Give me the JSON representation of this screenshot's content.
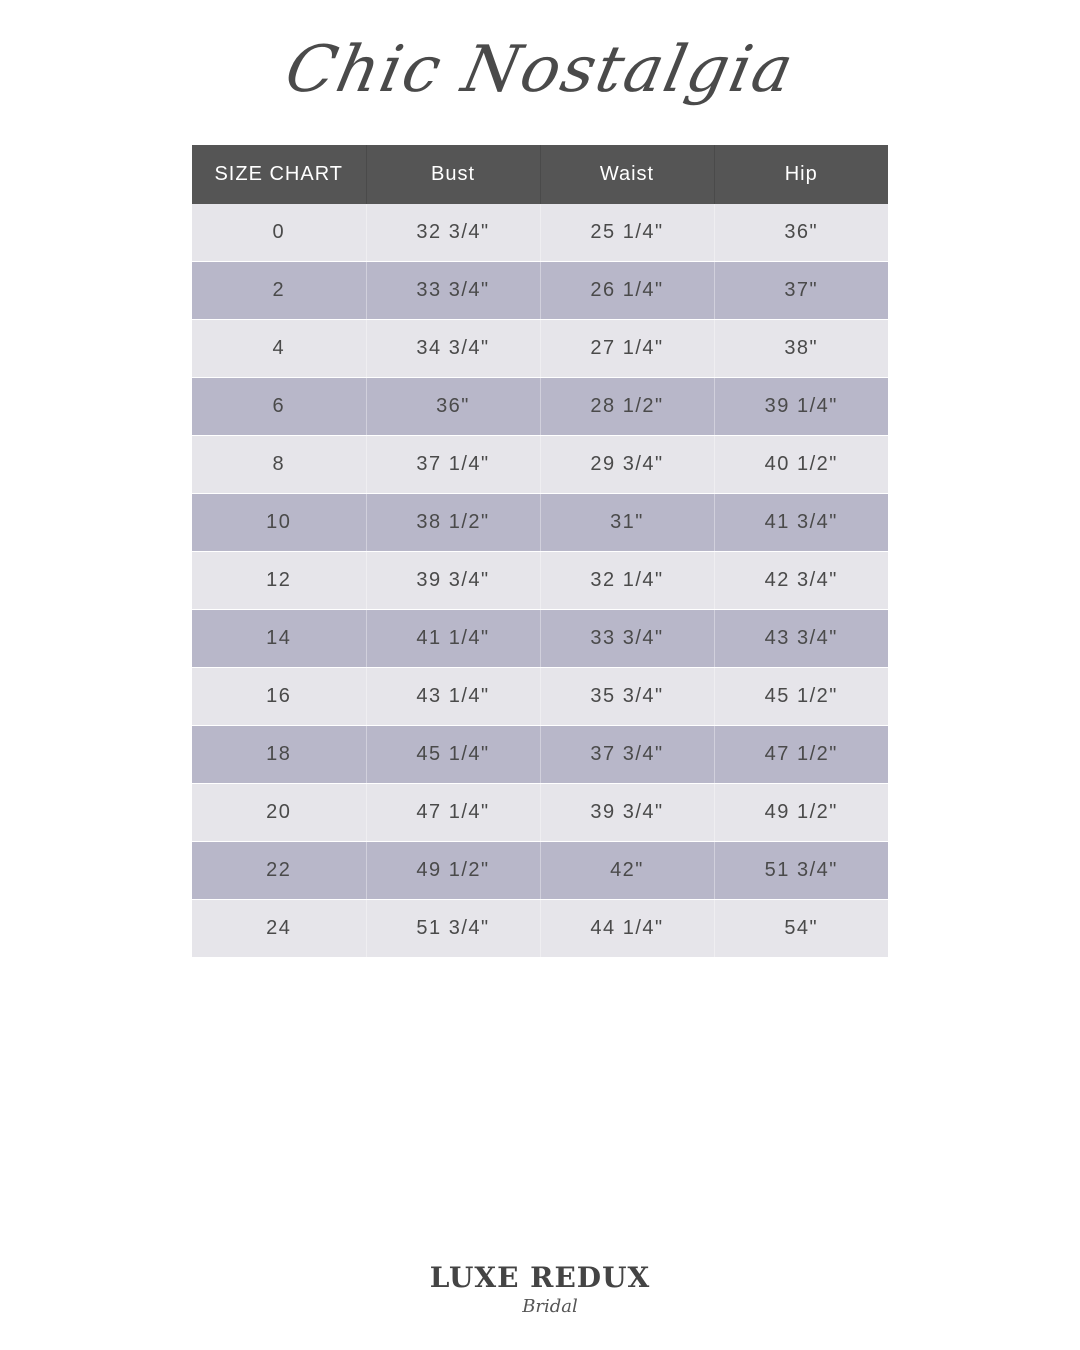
{
  "brand_title": "Chic Nostalgia",
  "table": {
    "headers": [
      "SIZE CHART",
      "Bust",
      "Waist",
      "Hip"
    ],
    "rows": [
      [
        "0",
        "32 3/4\"",
        "25 1/4\"",
        "36\""
      ],
      [
        "2",
        "33 3/4\"",
        "26 1/4\"",
        "37\""
      ],
      [
        "4",
        "34 3/4\"",
        "27 1/4\"",
        "38\""
      ],
      [
        "6",
        "36\"",
        "28 1/2\"",
        "39 1/4\""
      ],
      [
        "8",
        "37 1/4\"",
        "29 3/4\"",
        "40 1/2\""
      ],
      [
        "10",
        "38 1/2\"",
        "31\"",
        "41 3/4\""
      ],
      [
        "12",
        "39 3/4\"",
        "32 1/4\"",
        "42 3/4\""
      ],
      [
        "14",
        "41 1/4\"",
        "33 3/4\"",
        "43 3/4\""
      ],
      [
        "16",
        "43 1/4\"",
        "35 3/4\"",
        "45 1/2\""
      ],
      [
        "18",
        "45 1/4\"",
        "37 3/4\"",
        "47 1/2\""
      ],
      [
        "20",
        "47 1/4\"",
        "39 3/4\"",
        "49 1/2\""
      ],
      [
        "22",
        "49 1/2\"",
        "42\"",
        "51 3/4\""
      ],
      [
        "24",
        "51 3/4\"",
        "44 1/4\"",
        "54\""
      ]
    ]
  },
  "colors": {
    "header": "#555555",
    "row_light": "#e6e5ea",
    "row_dark": "#b8b7c9"
  },
  "logo": {
    "main": "LUXE REDUX",
    "sub": "Bridal"
  }
}
